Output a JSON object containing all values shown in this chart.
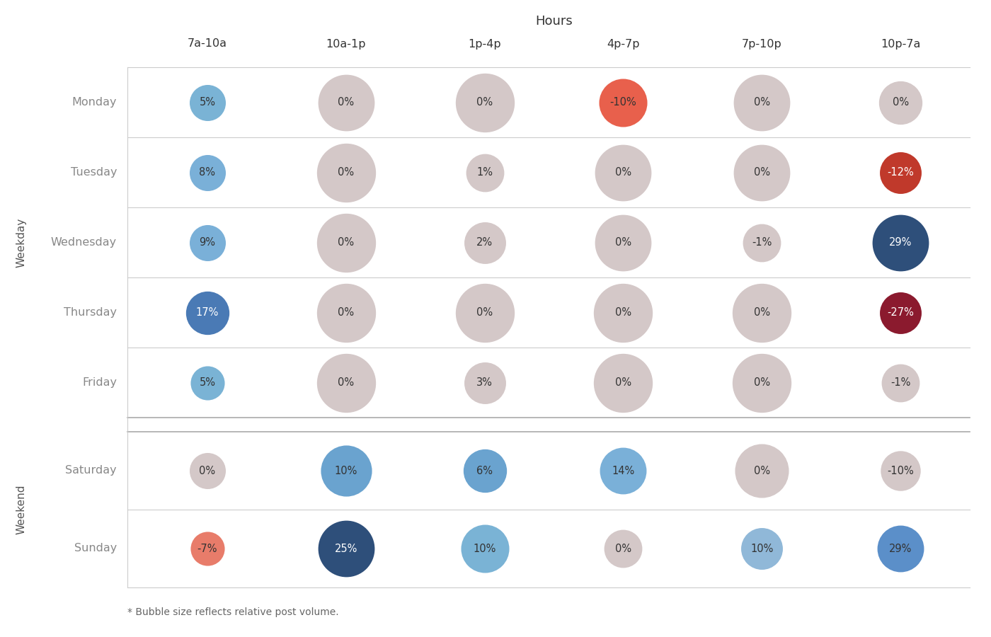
{
  "title": "Hours",
  "hours": [
    "7a-10a",
    "10a-1p",
    "1p-4p",
    "4p-7p",
    "7p-10p",
    "10p-7a"
  ],
  "days": [
    "Monday",
    "Tuesday",
    "Wednesday",
    "Thursday",
    "Friday",
    "Saturday",
    "Sunday"
  ],
  "weekday_label": "Weekday",
  "weekend_label": "Weekend",
  "footnote": "* Bubble size reflects relative post volume.",
  "data": {
    "Monday": [
      5,
      0,
      0,
      -10,
      0,
      0
    ],
    "Tuesday": [
      8,
      0,
      1,
      0,
      0,
      -12
    ],
    "Wednesday": [
      9,
      0,
      2,
      0,
      -1,
      29
    ],
    "Thursday": [
      17,
      0,
      0,
      0,
      0,
      -27
    ],
    "Friday": [
      5,
      0,
      3,
      0,
      0,
      -1
    ],
    "Saturday": [
      0,
      10,
      6,
      14,
      0,
      -10
    ],
    "Sunday": [
      -7,
      25,
      10,
      0,
      10,
      29
    ]
  },
  "cell_colors": {
    "Monday_0": "#7ab3d5",
    "Monday_1": "#d4c8c8",
    "Monday_2": "#d4c8c8",
    "Monday_3": "#e8604c",
    "Monday_4": "#d4c8c8",
    "Monday_5": "#d4c8c8",
    "Tuesday_0": "#7ab0d8",
    "Tuesday_1": "#d4c8c8",
    "Tuesday_2": "#d4c8c8",
    "Tuesday_3": "#d4c8c8",
    "Tuesday_4": "#d4c8c8",
    "Tuesday_5": "#c0392b",
    "Wednesday_0": "#7ab0d8",
    "Wednesday_1": "#d4c8c8",
    "Wednesday_2": "#d4c8c8",
    "Wednesday_3": "#d4c8c8",
    "Wednesday_4": "#d4c8c8",
    "Wednesday_5": "#2e4f7a",
    "Thursday_0": "#4a7ab5",
    "Thursday_1": "#d4c8c8",
    "Thursday_2": "#d4c8c8",
    "Thursday_3": "#d4c8c8",
    "Thursday_4": "#d4c8c8",
    "Thursday_5": "#8b1a2e",
    "Friday_0": "#7ab3d5",
    "Friday_1": "#d4c8c8",
    "Friday_2": "#d4c8c8",
    "Friday_3": "#d4c8c8",
    "Friday_4": "#d4c8c8",
    "Friday_5": "#d4c8c8",
    "Saturday_0": "#d4c8c8",
    "Saturday_1": "#6aa3cf",
    "Saturday_2": "#6aa3cf",
    "Saturday_3": "#7ab0d8",
    "Saturday_4": "#d4c8c8",
    "Saturday_5": "#d4c8c8",
    "Sunday_0": "#e87c6a",
    "Sunday_1": "#2e4f7a",
    "Sunday_2": "#7ab3d5",
    "Sunday_3": "#d4c8c8",
    "Sunday_4": "#90b8d8",
    "Sunday_5": "#5b8fc9"
  },
  "bubble_sizes": {
    "Monday_0": 900,
    "Monday_1": 2200,
    "Monday_2": 2400,
    "Monday_3": 1600,
    "Monday_4": 2200,
    "Monday_5": 1300,
    "Tuesday_0": 900,
    "Tuesday_1": 2400,
    "Tuesday_2": 1000,
    "Tuesday_3": 2200,
    "Tuesday_4": 2200,
    "Tuesday_5": 1200,
    "Wednesday_0": 900,
    "Wednesday_1": 2400,
    "Wednesday_2": 1200,
    "Wednesday_3": 2200,
    "Wednesday_4": 1000,
    "Wednesday_5": 2200,
    "Thursday_0": 1300,
    "Thursday_1": 2400,
    "Thursday_2": 2400,
    "Thursday_3": 2400,
    "Thursday_4": 2400,
    "Thursday_5": 1200,
    "Friday_0": 800,
    "Friday_1": 2400,
    "Friday_2": 1200,
    "Friday_3": 2400,
    "Friday_4": 2400,
    "Friday_5": 1000,
    "Saturday_0": 900,
    "Saturday_1": 1800,
    "Saturday_2": 1300,
    "Saturday_3": 1500,
    "Saturday_4": 2000,
    "Saturday_5": 1100,
    "Sunday_0": 800,
    "Sunday_1": 2200,
    "Sunday_2": 1600,
    "Sunday_3": 1000,
    "Sunday_4": 1200,
    "Sunday_5": 1500
  },
  "background": "#ffffff",
  "grid_color": "#cccccc",
  "separator_color": "#aaaaaa",
  "dark_cells": [
    "Wednesday_5",
    "Thursday_0",
    "Thursday_5",
    "Sunday_1"
  ],
  "white_text_cells": [
    "Wednesday_5",
    "Thursday_5",
    "Sunday_1",
    "Tuesday_5",
    "Thursday_0"
  ]
}
